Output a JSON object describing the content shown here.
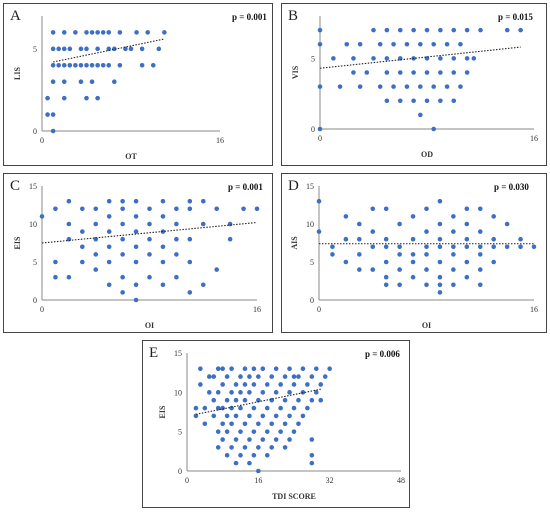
{
  "chart_data": [
    {
      "panel": "A",
      "type": "scatter",
      "p_value": "p = 0.001",
      "xlabel": "OT",
      "ylabel": "LIS",
      "xlim": [
        0,
        16
      ],
      "ylim": [
        0,
        7
      ],
      "xticks": [
        0,
        16
      ],
      "yticks": [
        0,
        5
      ],
      "trend": [
        [
          1,
          4.2
        ],
        [
          11,
          5.6
        ]
      ],
      "points": [
        [
          0.5,
          1
        ],
        [
          0.5,
          2
        ],
        [
          1,
          0
        ],
        [
          1,
          1
        ],
        [
          1,
          3
        ],
        [
          1,
          4
        ],
        [
          1,
          5
        ],
        [
          1,
          6
        ],
        [
          1.5,
          4
        ],
        [
          1.5,
          5
        ],
        [
          2,
          2
        ],
        [
          2,
          3
        ],
        [
          2,
          4
        ],
        [
          2,
          5
        ],
        [
          2,
          6
        ],
        [
          2.5,
          4
        ],
        [
          2.5,
          5
        ],
        [
          3,
          4
        ],
        [
          3,
          6
        ],
        [
          3.5,
          3
        ],
        [
          3.5,
          4
        ],
        [
          3.5,
          5
        ],
        [
          4,
          2
        ],
        [
          4,
          4
        ],
        [
          4,
          5
        ],
        [
          4,
          6
        ],
        [
          4.5,
          3
        ],
        [
          4.5,
          4
        ],
        [
          4.5,
          6
        ],
        [
          5,
          2
        ],
        [
          5,
          4
        ],
        [
          5,
          5
        ],
        [
          5,
          6
        ],
        [
          5.5,
          4
        ],
        [
          5.5,
          6
        ],
        [
          6,
          4
        ],
        [
          6,
          5
        ],
        [
          6,
          6
        ],
        [
          6.5,
          3
        ],
        [
          6.5,
          5
        ],
        [
          7,
          4
        ],
        [
          7,
          6
        ],
        [
          7.5,
          5
        ],
        [
          8,
          5
        ],
        [
          8.5,
          6
        ],
        [
          9,
          4
        ],
        [
          9,
          5
        ],
        [
          9.5,
          6
        ],
        [
          10,
          4
        ],
        [
          10.5,
          5
        ],
        [
          11,
          6
        ]
      ]
    },
    {
      "panel": "B",
      "type": "scatter",
      "p_value": "p = 0.015",
      "xlabel": "OD",
      "ylabel": "VIS",
      "xlim": [
        0,
        16
      ],
      "ylim": [
        0,
        8
      ],
      "xticks": [
        0,
        16
      ],
      "yticks": [
        0,
        5
      ],
      "trend": [
        [
          0,
          4.3
        ],
        [
          15,
          5.8
        ]
      ],
      "points": [
        [
          0,
          0
        ],
        [
          0,
          3
        ],
        [
          0,
          6
        ],
        [
          0,
          7
        ],
        [
          1,
          5
        ],
        [
          1.5,
          3
        ],
        [
          2,
          6
        ],
        [
          2.5,
          4
        ],
        [
          2.5,
          5
        ],
        [
          3,
          3
        ],
        [
          3,
          6
        ],
        [
          3.5,
          4
        ],
        [
          4,
          5
        ],
        [
          4,
          7
        ],
        [
          4.5,
          3
        ],
        [
          4.5,
          6
        ],
        [
          5,
          2
        ],
        [
          5,
          4
        ],
        [
          5,
          5
        ],
        [
          5,
          7
        ],
        [
          5.5,
          3
        ],
        [
          5.5,
          6
        ],
        [
          6,
          2
        ],
        [
          6,
          4
        ],
        [
          6,
          5
        ],
        [
          6,
          7
        ],
        [
          6.5,
          3
        ],
        [
          6.5,
          6
        ],
        [
          7,
          2
        ],
        [
          7,
          4
        ],
        [
          7,
          5
        ],
        [
          7,
          7
        ],
        [
          7.5,
          1
        ],
        [
          7.5,
          3
        ],
        [
          7.5,
          6
        ],
        [
          8,
          2
        ],
        [
          8,
          4
        ],
        [
          8,
          5
        ],
        [
          8,
          7
        ],
        [
          8.5,
          0
        ],
        [
          8.5,
          3
        ],
        [
          8.5,
          6
        ],
        [
          9,
          2
        ],
        [
          9,
          4
        ],
        [
          9,
          5
        ],
        [
          9,
          7
        ],
        [
          9.5,
          3
        ],
        [
          9.5,
          6
        ],
        [
          10,
          2
        ],
        [
          10,
          4
        ],
        [
          10,
          5
        ],
        [
          10,
          7
        ],
        [
          10.5,
          3
        ],
        [
          10.5,
          6
        ],
        [
          11,
          4
        ],
        [
          11,
          5
        ],
        [
          11,
          7
        ],
        [
          11.5,
          5
        ],
        [
          12,
          7
        ],
        [
          14,
          7
        ],
        [
          15,
          7
        ]
      ]
    },
    {
      "panel": "C",
      "type": "scatter",
      "p_value": "p = 0.001",
      "xlabel": "OI",
      "ylabel": "EIS",
      "xlim": [
        0,
        16
      ],
      "ylim": [
        0,
        15
      ],
      "xticks": [
        0,
        16
      ],
      "yticks": [
        0,
        5,
        10,
        15
      ],
      "trend": [
        [
          0,
          7.5
        ],
        [
          16,
          10.2
        ]
      ],
      "points": [
        [
          0,
          11
        ],
        [
          1,
          3
        ],
        [
          1,
          5
        ],
        [
          1,
          12
        ],
        [
          2,
          3
        ],
        [
          2,
          8
        ],
        [
          2,
          10
        ],
        [
          2,
          13
        ],
        [
          3,
          5
        ],
        [
          3,
          7
        ],
        [
          3,
          9
        ],
        [
          3,
          12
        ],
        [
          4,
          4
        ],
        [
          4,
          6
        ],
        [
          4,
          8
        ],
        [
          4,
          10
        ],
        [
          4,
          12
        ],
        [
          5,
          2
        ],
        [
          5,
          5
        ],
        [
          5,
          7
        ],
        [
          5,
          9
        ],
        [
          5,
          11
        ],
        [
          5,
          13
        ],
        [
          6,
          1
        ],
        [
          6,
          3
        ],
        [
          6,
          6
        ],
        [
          6,
          8
        ],
        [
          6,
          10
        ],
        [
          6,
          12
        ],
        [
          6,
          13
        ],
        [
          7,
          0
        ],
        [
          7,
          2
        ],
        [
          7,
          5
        ],
        [
          7,
          7
        ],
        [
          7,
          9
        ],
        [
          7,
          11
        ],
        [
          7,
          13
        ],
        [
          8,
          3
        ],
        [
          8,
          6
        ],
        [
          8,
          8
        ],
        [
          8,
          10
        ],
        [
          8,
          12
        ],
        [
          9,
          2
        ],
        [
          9,
          5
        ],
        [
          9,
          7
        ],
        [
          9,
          9
        ],
        [
          9,
          11
        ],
        [
          9,
          13
        ],
        [
          10,
          3
        ],
        [
          10,
          6
        ],
        [
          10,
          8
        ],
        [
          10,
          10
        ],
        [
          10,
          12
        ],
        [
          11,
          1
        ],
        [
          11,
          5
        ],
        [
          11,
          8
        ],
        [
          11,
          12
        ],
        [
          11,
          13
        ],
        [
          12,
          2
        ],
        [
          12,
          10
        ],
        [
          12,
          13
        ],
        [
          13,
          4
        ],
        [
          13,
          12
        ],
        [
          14,
          8
        ],
        [
          14,
          10
        ],
        [
          15,
          12
        ],
        [
          16,
          12
        ]
      ]
    },
    {
      "panel": "D",
      "type": "scatter",
      "p_value": "p = 0.030",
      "xlabel": "OI",
      "ylabel": "AIS",
      "xlim": [
        0,
        16
      ],
      "ylim": [
        0,
        15
      ],
      "xticks": [
        0,
        16
      ],
      "yticks": [
        0,
        5,
        10,
        15
      ],
      "trend": [
        [
          0,
          7.4
        ],
        [
          16,
          7.4
        ]
      ],
      "points": [
        [
          0,
          9
        ],
        [
          0,
          13
        ],
        [
          1,
          6
        ],
        [
          1,
          7
        ],
        [
          2,
          5
        ],
        [
          2,
          8
        ],
        [
          2,
          11
        ],
        [
          3,
          4
        ],
        [
          3,
          6
        ],
        [
          3,
          8
        ],
        [
          3,
          10
        ],
        [
          4,
          4
        ],
        [
          4,
          7
        ],
        [
          4,
          9
        ],
        [
          4,
          12
        ],
        [
          5,
          2
        ],
        [
          5,
          3
        ],
        [
          5,
          5
        ],
        [
          5,
          7
        ],
        [
          5,
          8
        ],
        [
          5,
          12
        ],
        [
          6,
          2
        ],
        [
          6,
          4
        ],
        [
          6,
          6
        ],
        [
          6,
          7
        ],
        [
          6,
          10
        ],
        [
          7,
          3
        ],
        [
          7,
          5
        ],
        [
          7,
          6
        ],
        [
          7,
          8
        ],
        [
          7,
          11
        ],
        [
          8,
          2
        ],
        [
          8,
          4
        ],
        [
          8,
          6
        ],
        [
          8,
          7
        ],
        [
          8,
          9
        ],
        [
          8,
          12
        ],
        [
          9,
          1
        ],
        [
          9,
          2
        ],
        [
          9,
          3
        ],
        [
          9,
          5
        ],
        [
          9,
          7
        ],
        [
          9,
          8
        ],
        [
          9,
          10
        ],
        [
          9,
          13
        ],
        [
          10,
          2
        ],
        [
          10,
          4
        ],
        [
          10,
          6
        ],
        [
          10,
          7
        ],
        [
          10,
          9
        ],
        [
          10,
          11
        ],
        [
          11,
          3
        ],
        [
          11,
          5
        ],
        [
          11,
          7
        ],
        [
          11,
          8
        ],
        [
          11,
          10
        ],
        [
          11,
          12
        ],
        [
          12,
          2
        ],
        [
          12,
          4
        ],
        [
          12,
          6
        ],
        [
          12,
          7
        ],
        [
          12,
          9
        ],
        [
          12,
          12
        ],
        [
          13,
          5
        ],
        [
          13,
          7
        ],
        [
          13,
          8
        ],
        [
          13,
          11
        ],
        [
          14,
          7
        ],
        [
          14,
          10
        ],
        [
          15,
          7
        ],
        [
          15,
          8
        ],
        [
          16,
          7
        ]
      ]
    },
    {
      "panel": "E",
      "type": "scatter",
      "p_value": "p = 0.006",
      "xlabel": "TDI SCORE",
      "ylabel": "EIS",
      "xlim": [
        0,
        48
      ],
      "ylim": [
        0,
        15
      ],
      "xticks": [
        0,
        16,
        32,
        48
      ],
      "yticks": [
        0,
        5,
        10,
        15
      ],
      "trend": [
        [
          2,
          7.2
        ],
        [
          30,
          10.4
        ]
      ],
      "points": [
        [
          2,
          7
        ],
        [
          2,
          8
        ],
        [
          3,
          11
        ],
        [
          3,
          13
        ],
        [
          4,
          6
        ],
        [
          4,
          8
        ],
        [
          5,
          10
        ],
        [
          5,
          12
        ],
        [
          6,
          7
        ],
        [
          6,
          9
        ],
        [
          6,
          12
        ],
        [
          7,
          3
        ],
        [
          7,
          5
        ],
        [
          7,
          8
        ],
        [
          7,
          10
        ],
        [
          7,
          13
        ],
        [
          8,
          4
        ],
        [
          8,
          6
        ],
        [
          8,
          8
        ],
        [
          8,
          11
        ],
        [
          8,
          13
        ],
        [
          9,
          2
        ],
        [
          9,
          5
        ],
        [
          9,
          7
        ],
        [
          9,
          9
        ],
        [
          9,
          12
        ],
        [
          10,
          3
        ],
        [
          10,
          6
        ],
        [
          10,
          8
        ],
        [
          10,
          10
        ],
        [
          10,
          13
        ],
        [
          11,
          1
        ],
        [
          11,
          4
        ],
        [
          11,
          7
        ],
        [
          11,
          9
        ],
        [
          11,
          11
        ],
        [
          12,
          2
        ],
        [
          12,
          5
        ],
        [
          12,
          8
        ],
        [
          12,
          10
        ],
        [
          12,
          12
        ],
        [
          13,
          3
        ],
        [
          13,
          6
        ],
        [
          13,
          9
        ],
        [
          13,
          11
        ],
        [
          13,
          13
        ],
        [
          14,
          1
        ],
        [
          14,
          4
        ],
        [
          14,
          7
        ],
        [
          14,
          10
        ],
        [
          14,
          12
        ],
        [
          15,
          2
        ],
        [
          15,
          5
        ],
        [
          15,
          8
        ],
        [
          15,
          11
        ],
        [
          15,
          13
        ],
        [
          16,
          0
        ],
        [
          16,
          3
        ],
        [
          16,
          6
        ],
        [
          16,
          9
        ],
        [
          16,
          12
        ],
        [
          17,
          4
        ],
        [
          17,
          7
        ],
        [
          17,
          10
        ],
        [
          17,
          13
        ],
        [
          18,
          2
        ],
        [
          18,
          5
        ],
        [
          18,
          8
        ],
        [
          18,
          11
        ],
        [
          19,
          3
        ],
        [
          19,
          6
        ],
        [
          19,
          9
        ],
        [
          19,
          12
        ],
        [
          20,
          4
        ],
        [
          20,
          7
        ],
        [
          20,
          10
        ],
        [
          20,
          13
        ],
        [
          21,
          5
        ],
        [
          21,
          8
        ],
        [
          21,
          11
        ],
        [
          22,
          3
        ],
        [
          22,
          6
        ],
        [
          22,
          9
        ],
        [
          22,
          12
        ],
        [
          23,
          4
        ],
        [
          23,
          7
        ],
        [
          23,
          10
        ],
        [
          23,
          13
        ],
        [
          24,
          5
        ],
        [
          24,
          8
        ],
        [
          24,
          11
        ],
        [
          24,
          12
        ],
        [
          25,
          6
        ],
        [
          25,
          9
        ],
        [
          25,
          12
        ],
        [
          26,
          7
        ],
        [
          26,
          10
        ],
        [
          26,
          13
        ],
        [
          27,
          8
        ],
        [
          27,
          11
        ],
        [
          28,
          1
        ],
        [
          28,
          2
        ],
        [
          28,
          4
        ],
        [
          28,
          9
        ],
        [
          28,
          12
        ],
        [
          29,
          10
        ],
        [
          29,
          13
        ],
        [
          30,
          9
        ],
        [
          30,
          11
        ],
        [
          31,
          12
        ],
        [
          32,
          13
        ]
      ]
    }
  ],
  "colors": {
    "point": "#3d6fc4",
    "axis": "#8a8a8a",
    "trend": "#222222",
    "border": "#444444"
  }
}
